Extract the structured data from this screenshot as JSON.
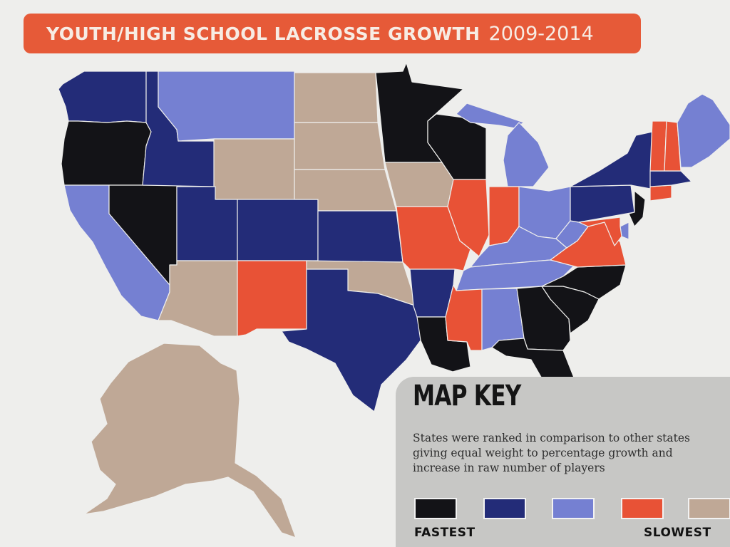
{
  "title": {
    "main": "YOUTH/HIGH SCHOOL LACROSSE GROWTH",
    "years": "2009-2014"
  },
  "colors": {
    "banner": "#e65a38",
    "tier_1_fastest": "#131317",
    "tier_2": "#232c78",
    "tier_3": "#7580d2",
    "tier_4": "#e85236",
    "tier_5_slowest": "#bfa896",
    "key_panel": "#c7c7c5"
  },
  "map_key": {
    "heading": "MAP KEY",
    "description": [
      "States were ranked in comparison to other states",
      "giving equal weight to percentage growth and",
      "increase in raw number of players"
    ],
    "tiers": [
      "tier_1_fastest",
      "tier_2",
      "tier_3",
      "tier_4",
      "tier_5_slowest"
    ],
    "fastest_label": "FASTEST",
    "slowest_label": "SLOWEST"
  },
  "states": [
    {
      "name": "Washington",
      "tier": 2
    },
    {
      "name": "Oregon",
      "tier": 1
    },
    {
      "name": "California",
      "tier": 3
    },
    {
      "name": "Nevada",
      "tier": 1
    },
    {
      "name": "Idaho",
      "tier": 2
    },
    {
      "name": "Montana",
      "tier": 3
    },
    {
      "name": "Wyoming",
      "tier": 5
    },
    {
      "name": "Utah",
      "tier": 2
    },
    {
      "name": "Arizona",
      "tier": 5
    },
    {
      "name": "Colorado",
      "tier": 2
    },
    {
      "name": "New Mexico",
      "tier": 4
    },
    {
      "name": "North Dakota",
      "tier": 5
    },
    {
      "name": "South Dakota",
      "tier": 5
    },
    {
      "name": "Nebraska",
      "tier": 5
    },
    {
      "name": "Kansas",
      "tier": 2
    },
    {
      "name": "Oklahoma",
      "tier": 5
    },
    {
      "name": "Texas",
      "tier": 2
    },
    {
      "name": "Minnesota",
      "tier": 1
    },
    {
      "name": "Iowa",
      "tier": 5
    },
    {
      "name": "Missouri",
      "tier": 4
    },
    {
      "name": "Arkansas",
      "tier": 2
    },
    {
      "name": "Louisiana",
      "tier": 1
    },
    {
      "name": "Wisconsin",
      "tier": 1
    },
    {
      "name": "Illinois",
      "tier": 4
    },
    {
      "name": "Michigan",
      "tier": 3
    },
    {
      "name": "Indiana",
      "tier": 4
    },
    {
      "name": "Ohio",
      "tier": 3
    },
    {
      "name": "Kentucky",
      "tier": 3
    },
    {
      "name": "Tennessee",
      "tier": 3
    },
    {
      "name": "Mississippi",
      "tier": 4
    },
    {
      "name": "Alabama",
      "tier": 3
    },
    {
      "name": "Georgia",
      "tier": 1
    },
    {
      "name": "Florida",
      "tier": 1
    },
    {
      "name": "South Carolina",
      "tier": 1
    },
    {
      "name": "North Carolina",
      "tier": 1
    },
    {
      "name": "Virginia",
      "tier": 4
    },
    {
      "name": "West Virginia",
      "tier": 3
    },
    {
      "name": "Pennsylvania",
      "tier": 2
    },
    {
      "name": "New York",
      "tier": 2
    },
    {
      "name": "New Jersey",
      "tier": 1
    },
    {
      "name": "Delaware",
      "tier": 3
    },
    {
      "name": "Maryland",
      "tier": 4
    },
    {
      "name": "Connecticut",
      "tier": 4
    },
    {
      "name": "Massachusetts",
      "tier": 2
    },
    {
      "name": "Vermont",
      "tier": 4
    },
    {
      "name": "New Hampshire",
      "tier": 4
    },
    {
      "name": "Maine",
      "tier": 3
    },
    {
      "name": "Alaska",
      "tier": 5
    }
  ]
}
